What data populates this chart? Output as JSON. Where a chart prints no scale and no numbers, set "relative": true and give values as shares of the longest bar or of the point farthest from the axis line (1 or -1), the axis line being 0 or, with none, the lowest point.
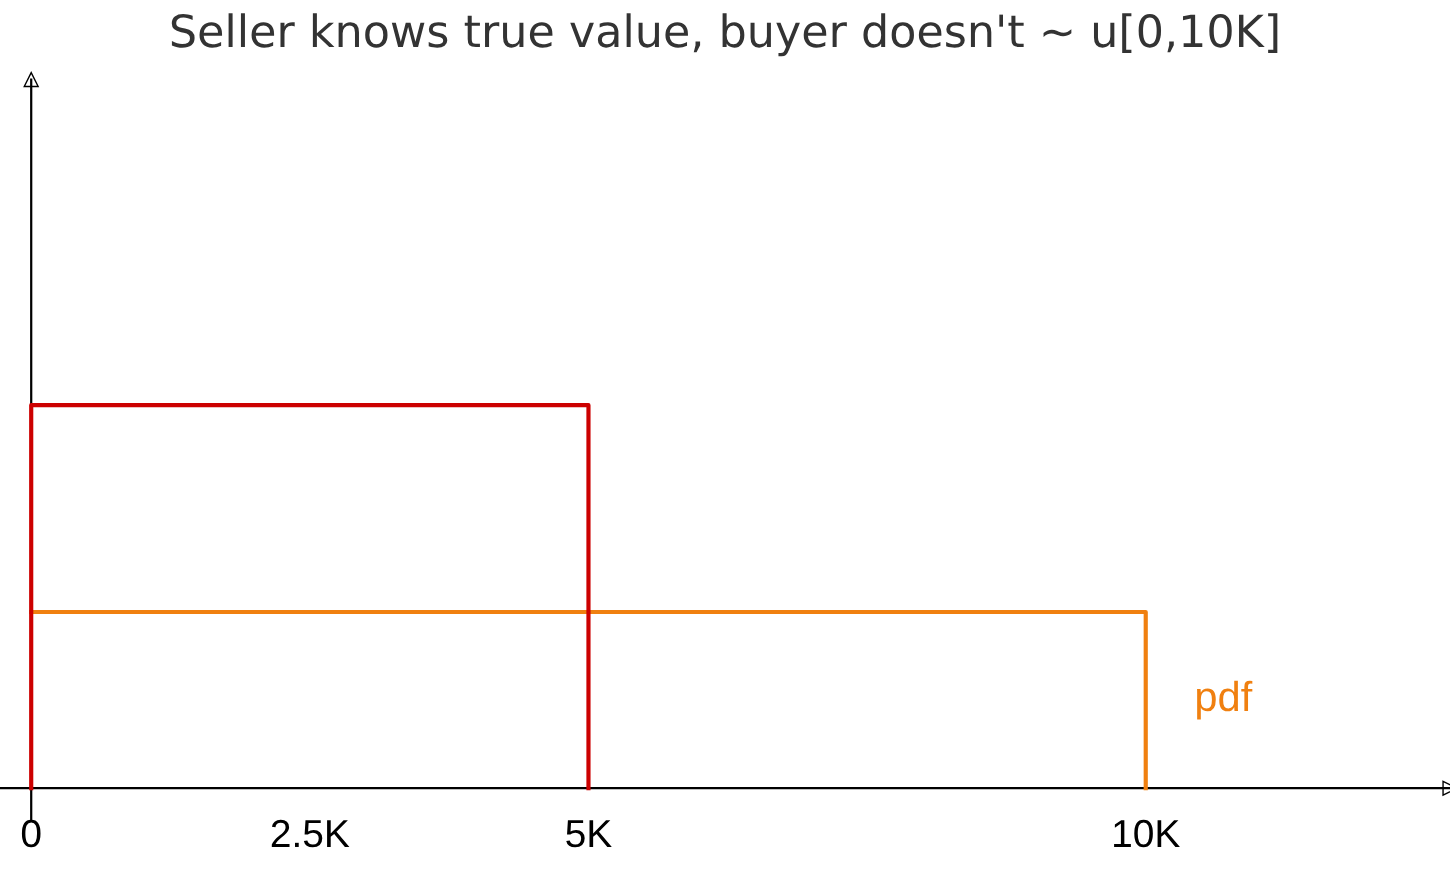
{
  "chart_data": {
    "type": "line",
    "title": "Seller knows true value, buyer doesn't ~ u[0,10K]",
    "relative": true,
    "xlim": [
      -280,
      12730
    ],
    "xticks": [
      0,
      {
        "value": 2500,
        "label": "2.5K"
      },
      {
        "value": 5000,
        "label": "5K"
      },
      {
        "value": 10000,
        "label": "10K"
      }
    ],
    "series": [
      {
        "color": "#cc0000",
        "x": [
          0,
          0,
          5000,
          5000
        ],
        "values": [
          0,
          1,
          1,
          0
        ]
      },
      {
        "name": "pdf",
        "color": "#f08010",
        "x": [
          0,
          10000,
          10000
        ],
        "values": [
          0.46,
          0.46,
          0
        ]
      }
    ]
  }
}
